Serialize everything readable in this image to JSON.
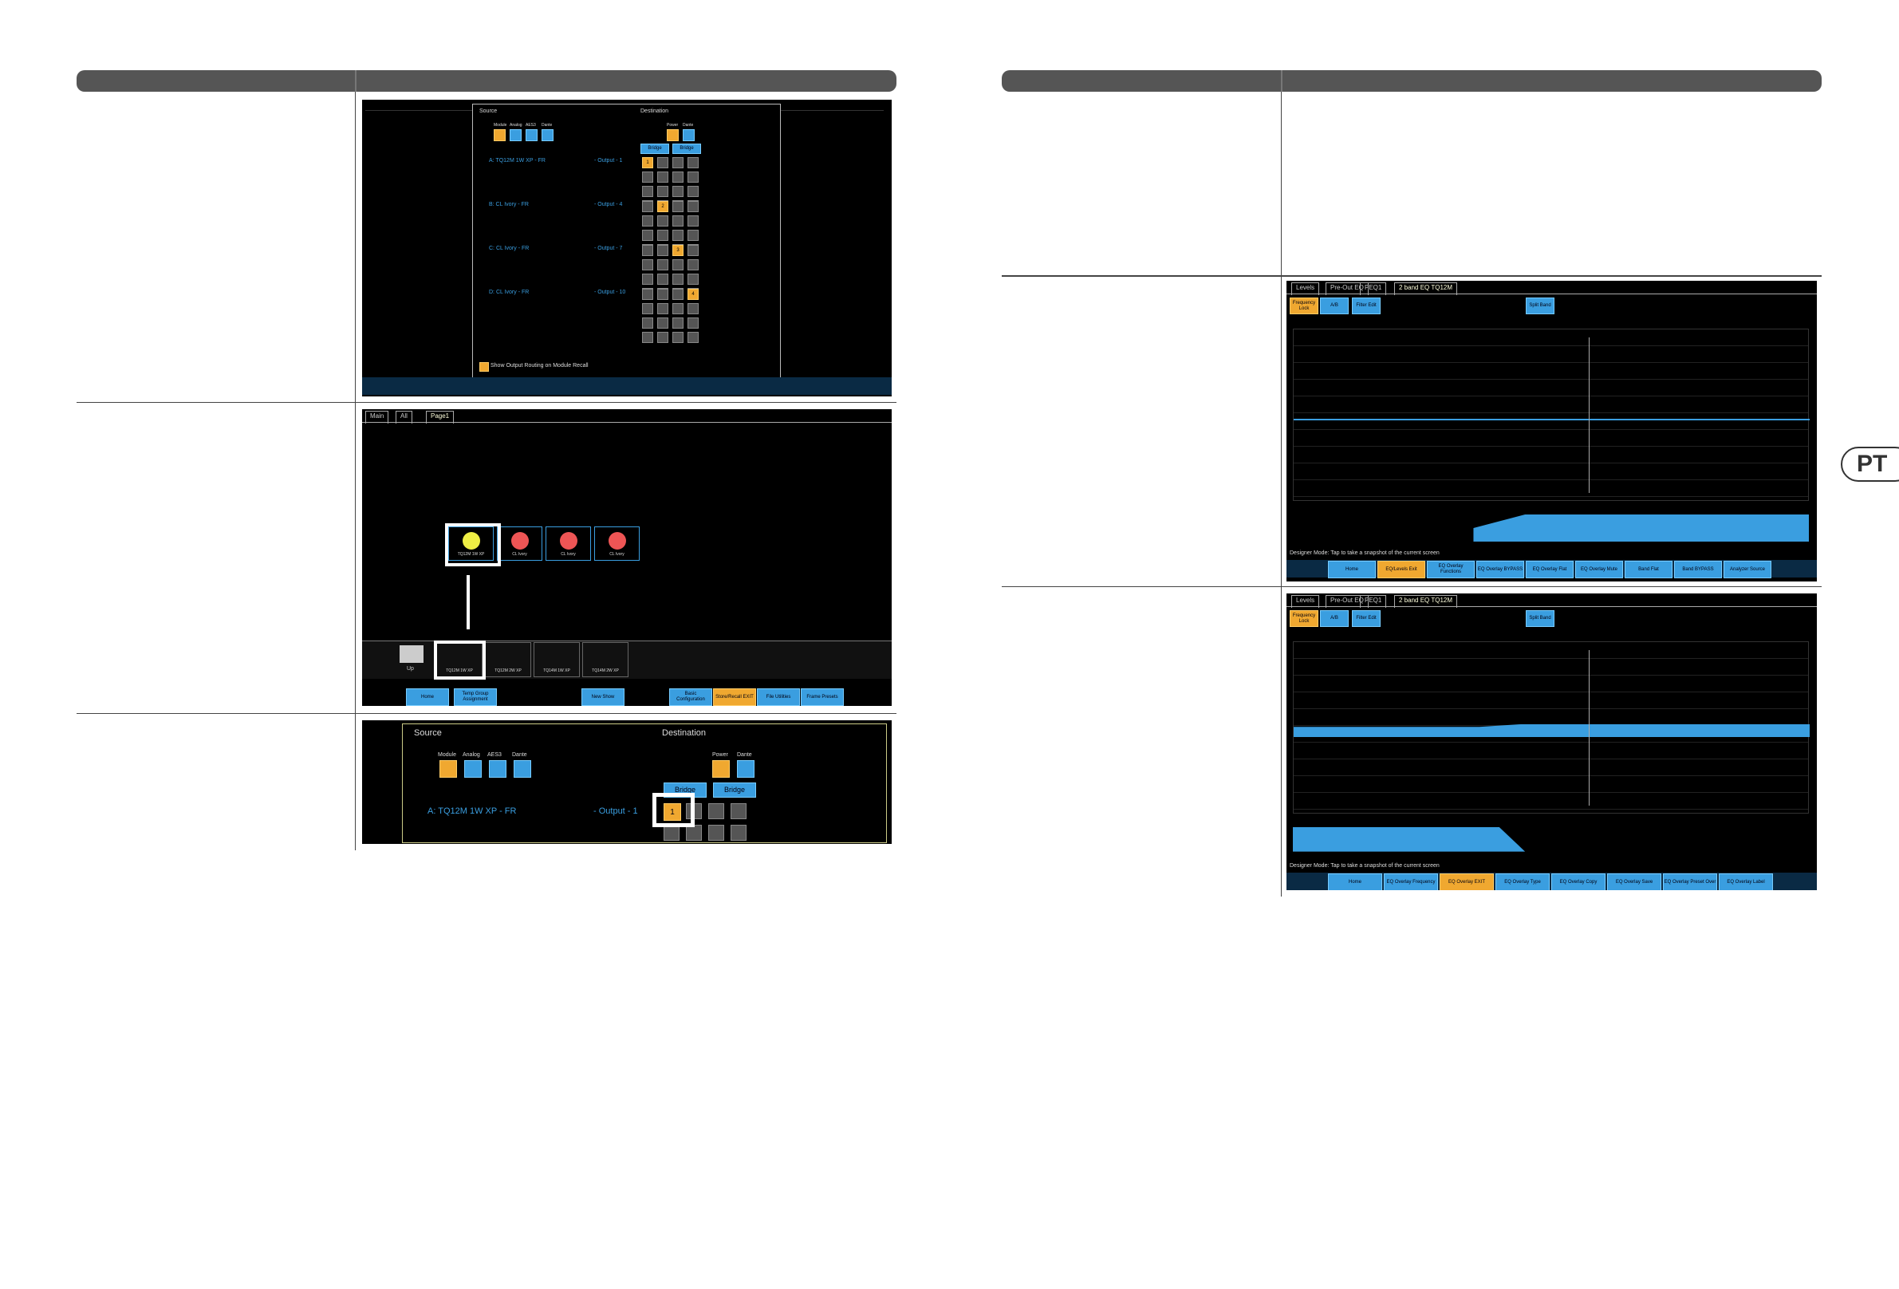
{
  "badge": "PT",
  "routing": {
    "source": "Source",
    "destination": "Destination",
    "source_buttons": [
      "Module",
      "Analog",
      "AES3",
      "Dante"
    ],
    "destination_buttons": [
      "Power",
      "Dante"
    ],
    "bridge": "Bridge",
    "rows": [
      {
        "source": "A: TQ12M 1W XP - FR",
        "output": "- Output - 1",
        "channel": "1"
      },
      {
        "source": "B: CL Ivory - FR",
        "output": "- Output - 4",
        "channel": "2"
      },
      {
        "source": "C: CL Ivory - FR",
        "output": "- Output - 7",
        "channel": "3"
      },
      {
        "source": "D: CL Ivory - FR",
        "output": "- Output - 10",
        "channel": "4"
      }
    ],
    "footer": "Show Output Routing on Module Recall"
  },
  "page_view": {
    "tabs": [
      "Main",
      "All",
      "Page1"
    ],
    "modules": [
      "TQ12M 1W XP",
      "CL Ivory",
      "CL Ivory",
      "CL Ivory"
    ],
    "up": "Up",
    "library": [
      "TQ12M 1W XP",
      "TQ12M 2W XP",
      "TQ14M 1W XP",
      "TQ14M 2W XP"
    ],
    "buttons": [
      "Home",
      "Temp Group Assignment",
      "New Show",
      "Basic Configuration",
      "Store/Recall EXIT",
      "File Utilities",
      "Frame Presets"
    ]
  },
  "routing_zoom": {
    "source": "Source",
    "destination": "Destination",
    "source_buttons": [
      "Module",
      "Analog",
      "AES3",
      "Dante"
    ],
    "destination_buttons": [
      "Power",
      "Dante"
    ],
    "bridge": "Bridge",
    "row_source": "A: TQ12M 1W XP - FR",
    "row_output": "- Output - 1",
    "channel": "1"
  },
  "eq_views": [
    {
      "tabs": [
        "Levels",
        "Pre-Out EQ",
        "PEQ1",
        "2 band EQ TQ12M"
      ],
      "top_buttons": [
        "Frequency Lock",
        "A/B",
        "Filter Edit",
        "Split Band"
      ],
      "status": "Designer Mode: Tap to take a snapshot of the current screen",
      "buttons": [
        "Home",
        "EQ/Levels Exit",
        "EQ Overlay Functions",
        "EQ Overlay BYPASS",
        "EQ Overlay Flat",
        "EQ Overlay Mute",
        "Band Flat",
        "Band BYPASS",
        "Analyzer Source"
      ]
    },
    {
      "tabs": [
        "Levels",
        "Pre-Out EQ",
        "PEQ1",
        "2 band EQ TQ12M"
      ],
      "top_buttons": [
        "Frequency Lock",
        "A/B",
        "Filter Edit",
        "Split Band"
      ],
      "status": "Designer Mode: Tap to take a snapshot of the current screen",
      "buttons": [
        "Home",
        "EQ Overlay Frequency",
        "EQ Overlay EXIT",
        "EQ Overlay Type",
        "EQ Overlay Copy",
        "EQ Overlay Save",
        "EQ Overlay Preset Over",
        "EQ Overlay Label"
      ]
    }
  ]
}
